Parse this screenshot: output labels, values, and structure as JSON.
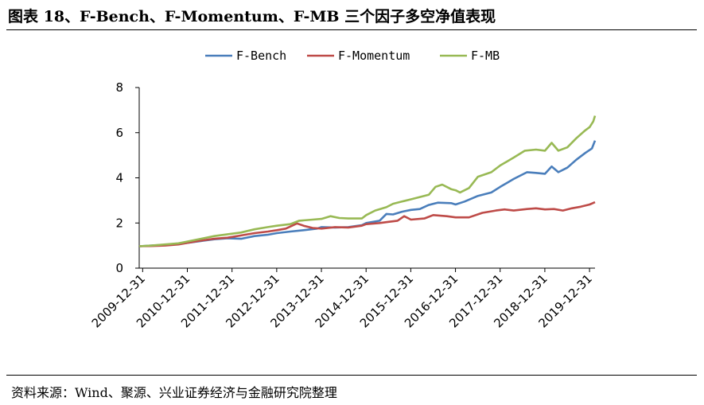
{
  "figure": {
    "title": "图表 18、F-Bench、F-Momentum、F-MB 三个因子多空净值表现",
    "source": "资料来源：Wind、聚源、兴业证券经济与金融研究院整理"
  },
  "chart_data": {
    "type": "line",
    "title": "",
    "xlabel": "",
    "ylabel": "",
    "ylim": [
      0,
      8
    ],
    "yticks": [
      0,
      2,
      4,
      6,
      8
    ],
    "xticks": [
      "2009-12-31",
      "2010-12-31",
      "2011-12-31",
      "2012-12-31",
      "2013-12-31",
      "2014-12-31",
      "2015-12-31",
      "2016-12-31",
      "2017-12-31",
      "2018-12-31",
      "2019-12-31"
    ],
    "x_start": 2009.92,
    "x_end": 2020.12,
    "grid": false,
    "legend": "top-center",
    "series": [
      {
        "name": "F-Bench",
        "color": "#4a7ebb",
        "points": [
          [
            2009.92,
            0.97
          ],
          [
            2010.2,
            1.0
          ],
          [
            2010.5,
            1.03
          ],
          [
            2010.8,
            1.07
          ],
          [
            2011.0,
            1.12
          ],
          [
            2011.3,
            1.2
          ],
          [
            2011.6,
            1.28
          ],
          [
            2011.9,
            1.32
          ],
          [
            2012.2,
            1.3
          ],
          [
            2012.5,
            1.42
          ],
          [
            2012.8,
            1.48
          ],
          [
            2013.0,
            1.55
          ],
          [
            2013.3,
            1.62
          ],
          [
            2013.6,
            1.68
          ],
          [
            2013.9,
            1.75
          ],
          [
            2014.0,
            1.82
          ],
          [
            2014.3,
            1.8
          ],
          [
            2014.6,
            1.82
          ],
          [
            2014.9,
            1.9
          ],
          [
            2015.0,
            2.0
          ],
          [
            2015.3,
            2.1
          ],
          [
            2015.45,
            2.4
          ],
          [
            2015.6,
            2.38
          ],
          [
            2015.8,
            2.5
          ],
          [
            2016.0,
            2.58
          ],
          [
            2016.2,
            2.62
          ],
          [
            2016.4,
            2.8
          ],
          [
            2016.6,
            2.9
          ],
          [
            2016.9,
            2.88
          ],
          [
            2017.0,
            2.82
          ],
          [
            2017.2,
            2.95
          ],
          [
            2017.5,
            3.2
          ],
          [
            2017.8,
            3.35
          ],
          [
            2018.0,
            3.6
          ],
          [
            2018.3,
            3.95
          ],
          [
            2018.6,
            4.25
          ],
          [
            2018.8,
            4.22
          ],
          [
            2019.0,
            4.18
          ],
          [
            2019.15,
            4.5
          ],
          [
            2019.3,
            4.25
          ],
          [
            2019.5,
            4.45
          ],
          [
            2019.7,
            4.8
          ],
          [
            2019.9,
            5.1
          ],
          [
            2020.05,
            5.3
          ],
          [
            2020.12,
            5.65
          ]
        ]
      },
      {
        "name": "F-Momentum",
        "color": "#be4b48",
        "points": [
          [
            2009.92,
            0.97
          ],
          [
            2010.2,
            0.98
          ],
          [
            2010.5,
            1.0
          ],
          [
            2010.8,
            1.05
          ],
          [
            2011.0,
            1.12
          ],
          [
            2011.3,
            1.22
          ],
          [
            2011.6,
            1.3
          ],
          [
            2011.9,
            1.35
          ],
          [
            2012.2,
            1.45
          ],
          [
            2012.5,
            1.55
          ],
          [
            2012.8,
            1.62
          ],
          [
            2013.0,
            1.68
          ],
          [
            2013.2,
            1.75
          ],
          [
            2013.45,
            1.98
          ],
          [
            2013.6,
            1.88
          ],
          [
            2013.8,
            1.78
          ],
          [
            2014.0,
            1.75
          ],
          [
            2014.3,
            1.82
          ],
          [
            2014.6,
            1.8
          ],
          [
            2014.9,
            1.88
          ],
          [
            2015.0,
            1.95
          ],
          [
            2015.3,
            2.0
          ],
          [
            2015.5,
            2.05
          ],
          [
            2015.7,
            2.1
          ],
          [
            2015.85,
            2.3
          ],
          [
            2016.0,
            2.15
          ],
          [
            2016.3,
            2.2
          ],
          [
            2016.5,
            2.35
          ],
          [
            2016.8,
            2.3
          ],
          [
            2017.0,
            2.25
          ],
          [
            2017.3,
            2.25
          ],
          [
            2017.6,
            2.45
          ],
          [
            2017.9,
            2.55
          ],
          [
            2018.1,
            2.6
          ],
          [
            2018.3,
            2.55
          ],
          [
            2018.6,
            2.62
          ],
          [
            2018.8,
            2.65
          ],
          [
            2019.0,
            2.6
          ],
          [
            2019.2,
            2.62
          ],
          [
            2019.4,
            2.55
          ],
          [
            2019.6,
            2.65
          ],
          [
            2019.8,
            2.72
          ],
          [
            2020.0,
            2.82
          ],
          [
            2020.12,
            2.92
          ]
        ]
      },
      {
        "name": "F-MB",
        "color": "#98b954",
        "points": [
          [
            2009.92,
            0.97
          ],
          [
            2010.2,
            1.0
          ],
          [
            2010.5,
            1.05
          ],
          [
            2010.8,
            1.1
          ],
          [
            2011.0,
            1.18
          ],
          [
            2011.3,
            1.3
          ],
          [
            2011.6,
            1.42
          ],
          [
            2011.9,
            1.5
          ],
          [
            2012.2,
            1.58
          ],
          [
            2012.5,
            1.72
          ],
          [
            2012.8,
            1.82
          ],
          [
            2013.0,
            1.88
          ],
          [
            2013.3,
            1.95
          ],
          [
            2013.5,
            2.1
          ],
          [
            2013.8,
            2.15
          ],
          [
            2014.0,
            2.18
          ],
          [
            2014.2,
            2.3
          ],
          [
            2014.4,
            2.22
          ],
          [
            2014.6,
            2.2
          ],
          [
            2014.9,
            2.2
          ],
          [
            2015.0,
            2.35
          ],
          [
            2015.2,
            2.55
          ],
          [
            2015.45,
            2.7
          ],
          [
            2015.6,
            2.85
          ],
          [
            2015.8,
            2.95
          ],
          [
            2016.0,
            3.05
          ],
          [
            2016.2,
            3.15
          ],
          [
            2016.4,
            3.25
          ],
          [
            2016.55,
            3.6
          ],
          [
            2016.7,
            3.7
          ],
          [
            2016.9,
            3.5
          ],
          [
            2017.0,
            3.45
          ],
          [
            2017.1,
            3.35
          ],
          [
            2017.3,
            3.55
          ],
          [
            2017.5,
            4.05
          ],
          [
            2017.8,
            4.25
          ],
          [
            2018.0,
            4.55
          ],
          [
            2018.3,
            4.9
          ],
          [
            2018.55,
            5.2
          ],
          [
            2018.8,
            5.25
          ],
          [
            2019.0,
            5.2
          ],
          [
            2019.15,
            5.55
          ],
          [
            2019.3,
            5.2
          ],
          [
            2019.5,
            5.35
          ],
          [
            2019.7,
            5.75
          ],
          [
            2019.9,
            6.1
          ],
          [
            2020.0,
            6.25
          ],
          [
            2020.08,
            6.5
          ],
          [
            2020.12,
            6.75
          ]
        ]
      }
    ]
  }
}
